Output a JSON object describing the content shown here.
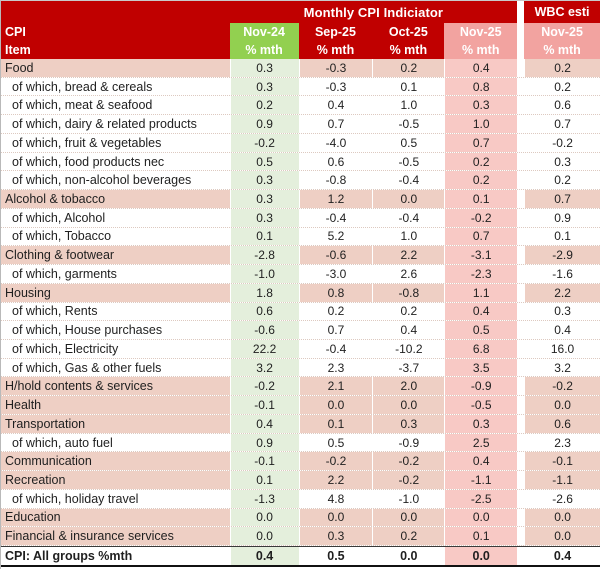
{
  "table": {
    "title": "Monthly CPI Indiciator",
    "wbc_title": "WBC esti",
    "corner": {
      "line1": "CPI",
      "line2": "Item"
    },
    "columns": [
      {
        "label": "Nov-24",
        "sub": "% mth",
        "style": "green"
      },
      {
        "label": "Sep-25",
        "sub": "% mth",
        "style": "red"
      },
      {
        "label": "Oct-25",
        "sub": "% mth",
        "style": "red"
      },
      {
        "label": "Nov-25",
        "sub": "% mth",
        "style": "salmon"
      },
      {
        "label": "Nov-25",
        "sub": "% mth",
        "style": "salmon"
      }
    ],
    "rows": [
      {
        "item": "Food",
        "kind": "cat",
        "values": [
          "0.3",
          "-0.3",
          "0.2",
          "0.4",
          "0.2"
        ]
      },
      {
        "item": "of which, bread & cereals",
        "kind": "sub",
        "values": [
          "0.3",
          "-0.3",
          "0.1",
          "0.8",
          "0.2"
        ]
      },
      {
        "item": "of which, meat & seafood",
        "kind": "sub",
        "values": [
          "0.2",
          "0.4",
          "1.0",
          "0.3",
          "0.6"
        ]
      },
      {
        "item": "of which, dairy & related products",
        "kind": "sub",
        "values": [
          "0.9",
          "0.7",
          "-0.5",
          "1.0",
          "0.7"
        ]
      },
      {
        "item": "of which, fruit & vegetables",
        "kind": "sub",
        "values": [
          "-0.2",
          "-4.0",
          "0.5",
          "0.7",
          "-0.2"
        ]
      },
      {
        "item": "of which, food products nec",
        "kind": "sub",
        "values": [
          "0.5",
          "0.6",
          "-0.5",
          "0.2",
          "0.3"
        ]
      },
      {
        "item": "of which, non-alcohol beverages",
        "kind": "sub",
        "values": [
          "0.3",
          "-0.8",
          "-0.4",
          "0.2",
          "0.2"
        ]
      },
      {
        "item": "Alcohol & tobacco",
        "kind": "cat",
        "values": [
          "0.3",
          "1.2",
          "0.0",
          "0.1",
          "0.7"
        ]
      },
      {
        "item": "of which, Alcohol",
        "kind": "sub",
        "values": [
          "0.3",
          "-0.4",
          "-0.4",
          "-0.2",
          "0.9"
        ]
      },
      {
        "item": "of which, Tobacco",
        "kind": "sub",
        "values": [
          "0.1",
          "5.2",
          "1.0",
          "0.7",
          "0.1"
        ]
      },
      {
        "item": "Clothing & footwear",
        "kind": "cat",
        "values": [
          "-2.8",
          "-0.6",
          "2.2",
          "-3.1",
          "-2.9"
        ]
      },
      {
        "item": "of which, garments",
        "kind": "sub",
        "values": [
          "-1.0",
          "-3.0",
          "2.6",
          "-2.3",
          "-1.6"
        ]
      },
      {
        "item": "Housing",
        "kind": "cat",
        "values": [
          "1.8",
          "0.8",
          "-0.8",
          "1.1",
          "2.2"
        ]
      },
      {
        "item": "of which, Rents",
        "kind": "sub",
        "values": [
          "0.6",
          "0.2",
          "0.2",
          "0.4",
          "0.3"
        ]
      },
      {
        "item": "of which, House purchases",
        "kind": "sub",
        "values": [
          "-0.6",
          "0.7",
          "0.4",
          "0.5",
          "0.4"
        ]
      },
      {
        "item": "of which, Electricity",
        "kind": "sub",
        "values": [
          "22.2",
          "-0.4",
          "-10.2",
          "6.8",
          "16.0"
        ]
      },
      {
        "item": "of which, Gas & other fuels",
        "kind": "sub",
        "values": [
          "3.2",
          "2.3",
          "-3.7",
          "3.5",
          "3.2"
        ]
      },
      {
        "item": "H/hold contents & services",
        "kind": "cat",
        "values": [
          "-0.2",
          "2.1",
          "2.0",
          "-0.9",
          "-0.2"
        ]
      },
      {
        "item": "Health",
        "kind": "cat",
        "values": [
          "-0.1",
          "0.0",
          "0.0",
          "-0.5",
          "0.0"
        ]
      },
      {
        "item": "Transportation",
        "kind": "cat",
        "values": [
          "0.4",
          "0.1",
          "0.3",
          "0.3",
          "0.6"
        ]
      },
      {
        "item": "of which, auto fuel",
        "kind": "sub",
        "values": [
          "0.9",
          "0.5",
          "-0.9",
          "2.5",
          "2.3"
        ]
      },
      {
        "item": "Communication",
        "kind": "cat",
        "values": [
          "-0.1",
          "-0.2",
          "-0.2",
          "0.4",
          "-0.1"
        ]
      },
      {
        "item": "Recreation",
        "kind": "cat",
        "values": [
          "0.1",
          "2.2",
          "-0.2",
          "-1.1",
          "-1.1"
        ]
      },
      {
        "item": "of which, holiday travel",
        "kind": "sub",
        "values": [
          "-1.3",
          "4.8",
          "-1.0",
          "-2.5",
          "-2.6"
        ]
      },
      {
        "item": "Education",
        "kind": "cat",
        "values": [
          "0.0",
          "0.0",
          "0.0",
          "0.0",
          "0.0"
        ]
      },
      {
        "item": "Financial & insurance services",
        "kind": "cat",
        "values": [
          "0.0",
          "0.3",
          "0.2",
          "0.1",
          "0.0"
        ]
      },
      {
        "item": "CPI: All groups %mth",
        "kind": "total",
        "values": [
          "0.4",
          "0.5",
          "0.0",
          "0.0",
          "0.4"
        ]
      }
    ]
  },
  "colors": {
    "header_red": "#C00000",
    "header_green": "#92D050",
    "header_salmon": "#F2A3A0",
    "cell_green": "#E4EFDC",
    "cell_pink": "#F8C9C5",
    "cell_tan": "#EECFC4"
  }
}
